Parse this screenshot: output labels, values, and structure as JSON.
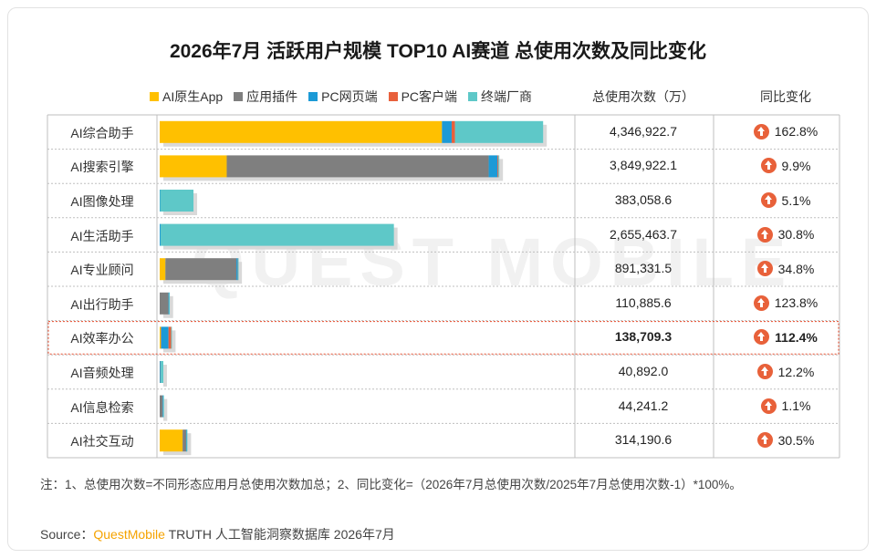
{
  "chart_data": {
    "type": "bar",
    "stacked": true,
    "orientation": "horizontal",
    "title": "2026年7月 活跃用户规模 TOP10 AI赛道 总使用次数及同比变化",
    "categories": [
      "AI综合助手",
      "AI搜索引擎",
      "AI图像处理",
      "AI生活助手",
      "AI专业顾问",
      "AI出行助手",
      "AI效率办公",
      "AI音频处理",
      "AI信息检索",
      "AI社交互动"
    ],
    "series": [
      {
        "name": "AI原生App",
        "color": "#ffc000",
        "values": [
          3200000,
          760000,
          0,
          0,
          65000,
          0,
          12000,
          0,
          0,
          260000
        ]
      },
      {
        "name": "应用插件",
        "color": "#7f7f7f",
        "values": [
          0,
          2970000,
          0,
          0,
          805000,
          100000,
          8000,
          4000,
          34000,
          40000
        ]
      },
      {
        "name": "PC网页端",
        "color": "#1c9ad6",
        "values": [
          110000,
          100000,
          5000,
          10000,
          14000,
          6000,
          80000,
          8000,
          6000,
          4000
        ]
      },
      {
        "name": "PC客户端",
        "color": "#e8603c",
        "values": [
          37000,
          10000,
          0,
          0,
          2000,
          0,
          30000,
          0,
          0,
          0
        ]
      },
      {
        "name": "终端厂商",
        "color": "#5ec8c8",
        "values": [
          1000000,
          10000,
          378000,
          2645000,
          5000,
          4800,
          8700,
          28892,
          4241,
          10190
        ]
      }
    ],
    "totals_header": "总使用次数（万）",
    "totals": [
      "4,346,922.7",
      "3,849,922.1",
      "383,058.6",
      "2,655,463.7",
      "891,331.5",
      "110,885.6",
      "138,709.3",
      "40,892.0",
      "44,241.2",
      "314,190.6"
    ],
    "yoy_header": "同比变化",
    "yoy": [
      "162.8%",
      "9.9%",
      "5.1%",
      "30.8%",
      "34.8%",
      "123.8%",
      "112.4%",
      "12.2%",
      "1.1%",
      "30.5%"
    ],
    "highlight_index": 6,
    "xlim": [
      0,
      4500000
    ]
  },
  "watermark": "QUEST MOBILE",
  "note": "注：1、总使用次数=不同形态应用月总使用次数加总；2、同比变化=（2026年7月总使用次数/2025年7月总使用次数-1）*100%。",
  "source": {
    "prefix": "Source：",
    "brand": "QuestMobile",
    "suffix": " TRUTH 人工智能洞察数据库 2026年7月"
  },
  "colors": {
    "grid": "#bfbfbf",
    "highlight_border": "#e84a2a",
    "up_icon": "#e8613a"
  }
}
